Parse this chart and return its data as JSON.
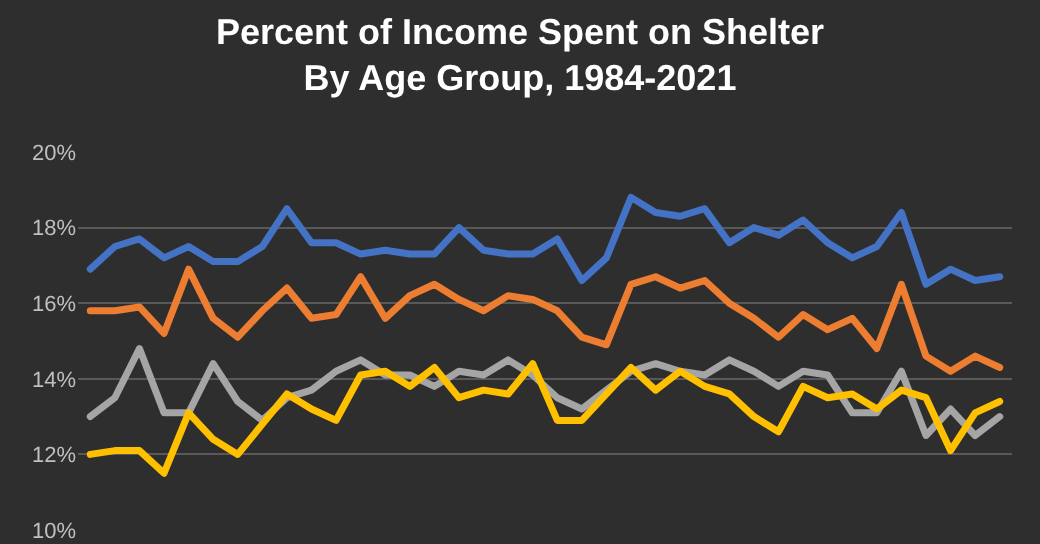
{
  "chart_data": {
    "type": "line",
    "title": "Percent of Income Spent on Shelter\nBy Age Group, 1984-2021",
    "categories": [
      null,
      null,
      null,
      null,
      null,
      null,
      null,
      null,
      null,
      null,
      null,
      null,
      null,
      null,
      null,
      null,
      null,
      null,
      null,
      null,
      null,
      null,
      null,
      null,
      null,
      null,
      null,
      null,
      null,
      null,
      null,
      null,
      null,
      null,
      null,
      null,
      null,
      null
    ],
    "series": [
      {
        "color": "#4472c4",
        "values": [
          16.9,
          17.5,
          17.7,
          17.2,
          17.5,
          17.1,
          17.1,
          17.5,
          18.5,
          17.6,
          17.6,
          17.3,
          17.4,
          17.3,
          17.3,
          18.0,
          17.4,
          17.3,
          17.3,
          17.7,
          16.6,
          17.2,
          18.8,
          18.4,
          18.3,
          18.5,
          17.6,
          18.0,
          17.8,
          18.2,
          17.6,
          17.2,
          17.5,
          18.4,
          16.5,
          16.9,
          16.6,
          16.7
        ]
      },
      {
        "color": "#ed7d31",
        "values": [
          15.8,
          15.8,
          15.9,
          15.2,
          16.9,
          15.6,
          15.1,
          15.8,
          16.4,
          15.6,
          15.7,
          16.7,
          15.6,
          16.2,
          16.5,
          16.1,
          15.8,
          16.2,
          16.1,
          15.8,
          15.1,
          14.9,
          16.5,
          16.7,
          16.4,
          16.6,
          16.0,
          15.6,
          15.1,
          15.7,
          15.3,
          15.6,
          14.8,
          16.5,
          14.6,
          14.2,
          14.6,
          14.3
        ]
      },
      {
        "color": "#a5a5a5",
        "values": [
          13.0,
          13.5,
          14.8,
          13.1,
          13.1,
          14.4,
          13.4,
          12.9,
          13.5,
          13.7,
          14.2,
          14.5,
          14.1,
          14.1,
          13.8,
          14.2,
          14.1,
          14.5,
          14.1,
          13.5,
          13.2,
          13.7,
          14.2,
          14.4,
          14.2,
          14.1,
          14.5,
          14.2,
          13.8,
          14.2,
          14.1,
          13.1,
          13.1,
          14.2,
          12.5,
          13.2,
          12.5,
          13.0
        ]
      },
      {
        "color": "#ffc000",
        "values": [
          12.0,
          12.1,
          12.1,
          11.5,
          13.1,
          12.4,
          12.0,
          12.8,
          13.6,
          13.2,
          12.9,
          14.1,
          14.2,
          13.8,
          14.3,
          13.5,
          13.7,
          13.6,
          14.4,
          12.9,
          12.9,
          13.6,
          14.3,
          13.7,
          14.2,
          13.8,
          13.6,
          13.0,
          12.6,
          13.8,
          13.5,
          13.6,
          13.2,
          13.7,
          13.5,
          12.1,
          13.1,
          13.4
        ]
      }
    ],
    "ylim": [
      10,
      20
    ],
    "yticks": [
      {
        "value": 10,
        "label": "10%"
      },
      {
        "value": 12,
        "label": "12%"
      },
      {
        "value": 14,
        "label": "14%"
      },
      {
        "value": 16,
        "label": "16%"
      },
      {
        "value": 18,
        "label": "18%"
      },
      {
        "value": 20,
        "label": "20%"
      }
    ],
    "grid": "y",
    "marker": "none",
    "line_style": "solid"
  }
}
